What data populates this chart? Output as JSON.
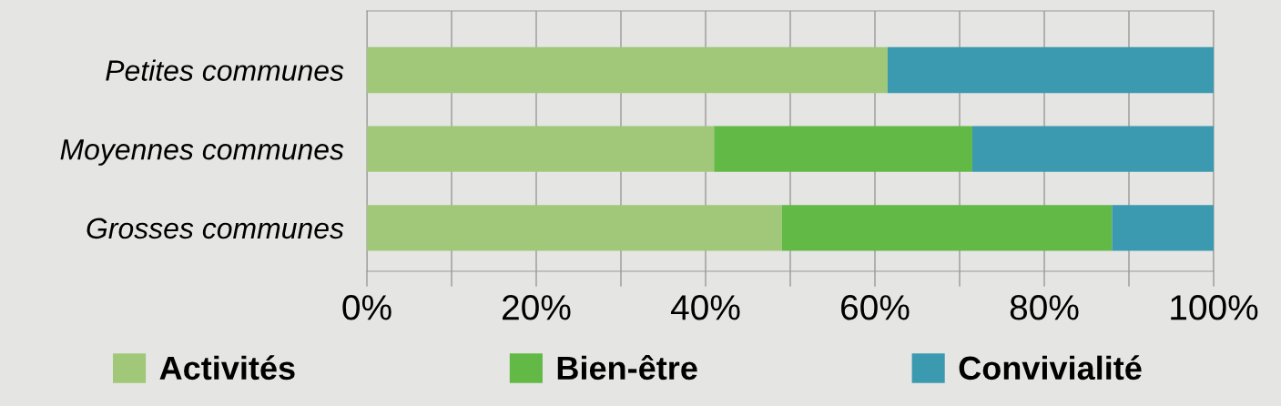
{
  "chart_data": {
    "type": "bar",
    "orientation": "horizontal",
    "stacked": true,
    "categories": [
      "Petites communes",
      "Moyennes communes",
      "Grosses communes"
    ],
    "series": [
      {
        "name": "Activités",
        "color": "#a0c878",
        "values": [
          61.5,
          41,
          49
        ]
      },
      {
        "name": "Bien-être",
        "color": "#62b946",
        "values": [
          0,
          30.5,
          39
        ]
      },
      {
        "name": "Convivialité",
        "color": "#3c9ab0",
        "values": [
          38.5,
          28.5,
          12
        ]
      }
    ],
    "xlim": [
      0,
      100
    ],
    "xticks": [
      {
        "value": 0,
        "label": "0%"
      },
      {
        "value": 10,
        "label": null
      },
      {
        "value": 20,
        "label": "20%"
      },
      {
        "value": 30,
        "label": null
      },
      {
        "value": 40,
        "label": "40%"
      },
      {
        "value": 50,
        "label": null
      },
      {
        "value": 60,
        "label": "60%"
      },
      {
        "value": 70,
        "label": null
      },
      {
        "value": 80,
        "label": "80%"
      },
      {
        "value": 90,
        "label": null
      },
      {
        "value": 100,
        "label": "100%"
      }
    ],
    "grid": "x",
    "legend": "bottom"
  }
}
